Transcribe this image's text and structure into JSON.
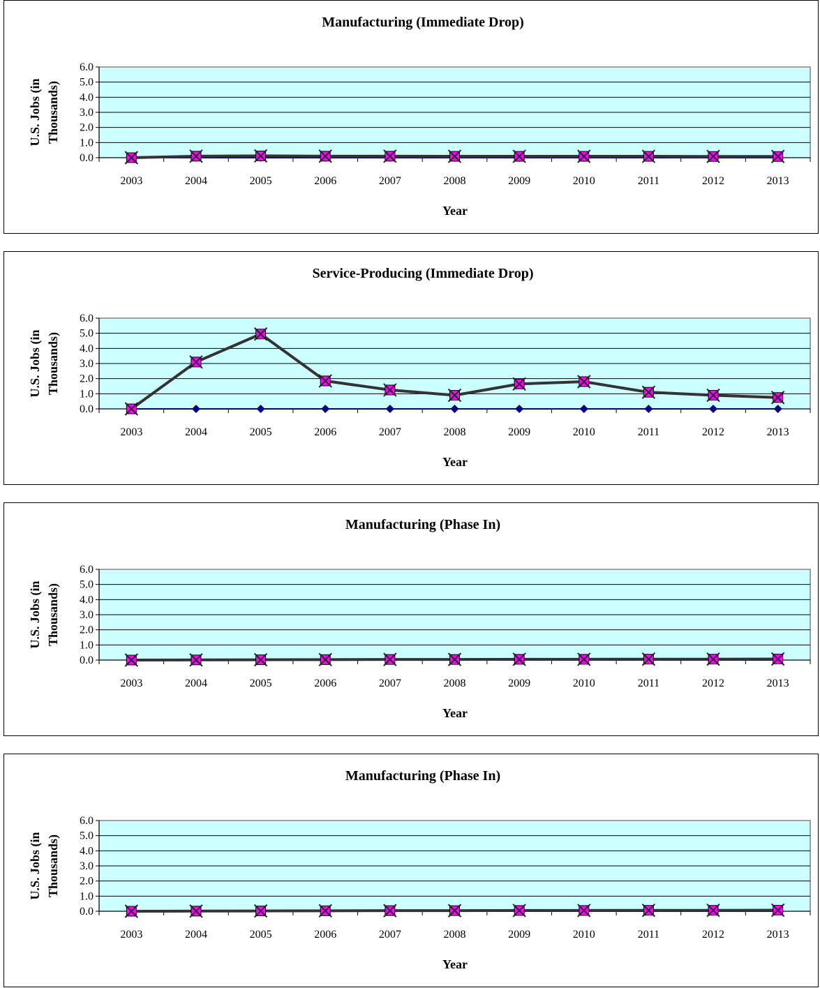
{
  "colors": {
    "plot_background": "#ccffff",
    "grid": "#000000",
    "plot_border": "#808080",
    "series_line": "#333333",
    "series_marker": "#ff00ff",
    "baseline_line": "#000080",
    "baseline_marker": "#000080"
  },
  "chart_data": [
    {
      "type": "line",
      "title": "Manufacturing (Immediate Drop)",
      "xlabel": "Year",
      "ylabel": [
        "U.S. Jobs (in",
        "Thousands)"
      ],
      "categories": [
        "2003",
        "2004",
        "2005",
        "2006",
        "2007",
        "2008",
        "2009",
        "2010",
        "2011",
        "2012",
        "2013"
      ],
      "yticks": [
        "0.0",
        "1.0",
        "2.0",
        "3.0",
        "4.0",
        "5.0",
        "6.0"
      ],
      "ylim": [
        0,
        6
      ],
      "grid": true,
      "series": [
        {
          "marker": "diamond",
          "values": [
            0,
            0,
            0,
            0,
            0,
            0,
            0,
            0,
            0,
            0,
            0
          ]
        },
        {
          "marker": "square-x",
          "values": [
            0,
            0.1,
            0.12,
            0.1,
            0.1,
            0.09,
            0.09,
            0.09,
            0.09,
            0.08,
            0.08
          ]
        }
      ]
    },
    {
      "type": "line",
      "title": "Service-Producing (Immediate Drop)",
      "xlabel": "Year",
      "ylabel": [
        "U.S. Jobs (in",
        "Thousands)"
      ],
      "categories": [
        "2003",
        "2004",
        "2005",
        "2006",
        "2007",
        "2008",
        "2009",
        "2010",
        "2011",
        "2012",
        "2013"
      ],
      "yticks": [
        "0.0",
        "1.0",
        "2.0",
        "3.0",
        "4.0",
        "5.0",
        "6.0"
      ],
      "ylim": [
        0,
        6
      ],
      "grid": true,
      "series": [
        {
          "marker": "diamond",
          "values": [
            0,
            0,
            0,
            0,
            0,
            0,
            0,
            0,
            0,
            0,
            0
          ]
        },
        {
          "marker": "square-x",
          "values": [
            0,
            3.1,
            4.95,
            1.85,
            1.25,
            0.9,
            1.65,
            1.8,
            1.1,
            0.9,
            0.75
          ]
        }
      ]
    },
    {
      "type": "line",
      "title": "Manufacturing (Phase In)",
      "xlabel": "Year",
      "ylabel": [
        "U.S. Jobs (in",
        "Thousands)"
      ],
      "categories": [
        "2003",
        "2004",
        "2005",
        "2006",
        "2007",
        "2008",
        "2009",
        "2010",
        "2011",
        "2012",
        "2013"
      ],
      "yticks": [
        "0.0",
        "1.0",
        "2.0",
        "3.0",
        "4.0",
        "5.0",
        "6.0"
      ],
      "ylim": [
        0,
        6
      ],
      "grid": true,
      "series": [
        {
          "marker": "diamond",
          "values": [
            0,
            0,
            0,
            0,
            0,
            0,
            0,
            0,
            0,
            0,
            0
          ]
        },
        {
          "marker": "square-x",
          "values": [
            0,
            0.01,
            0.02,
            0.03,
            0.04,
            0.04,
            0.05,
            0.05,
            0.06,
            0.06,
            0.07
          ]
        }
      ]
    },
    {
      "type": "line",
      "title": "Manufacturing (Phase In)",
      "xlabel": "Year",
      "ylabel": [
        "U.S. Jobs (in",
        "Thousands)"
      ],
      "categories": [
        "2003",
        "2004",
        "2005",
        "2006",
        "2007",
        "2008",
        "2009",
        "2010",
        "2011",
        "2012",
        "2013"
      ],
      "yticks": [
        "0.0",
        "1.0",
        "2.0",
        "3.0",
        "4.0",
        "5.0",
        "6.0"
      ],
      "ylim": [
        0,
        6
      ],
      "grid": true,
      "series": [
        {
          "marker": "diamond",
          "values": [
            0,
            0,
            0,
            0,
            0,
            0,
            0,
            0,
            0,
            0,
            0
          ]
        },
        {
          "marker": "square-x",
          "values": [
            0,
            0.01,
            0.02,
            0.03,
            0.04,
            0.04,
            0.05,
            0.05,
            0.06,
            0.06,
            0.07
          ]
        }
      ]
    }
  ]
}
